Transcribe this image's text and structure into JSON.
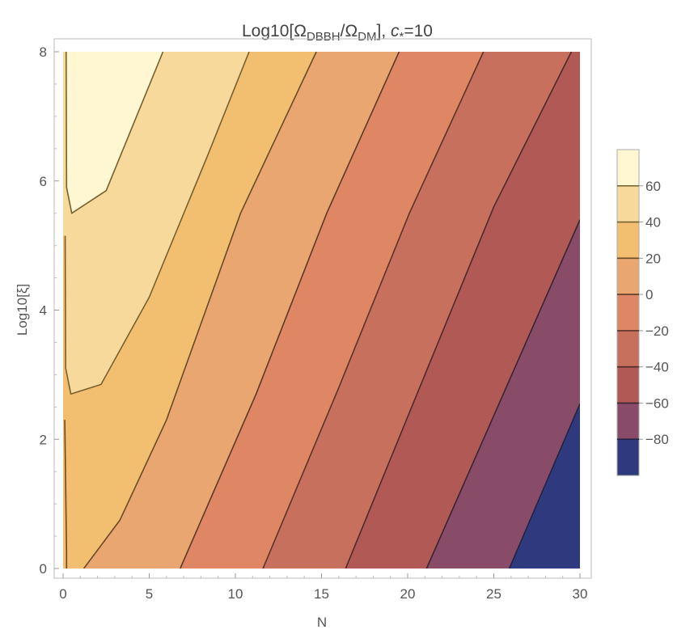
{
  "chart_data": {
    "type": "contour",
    "title": {
      "prefix": "Log10[Ω",
      "sub1": "DBBH",
      "mid": "/Ω",
      "sub2": "DM",
      "suffix_a": "], ",
      "param": "c",
      "param_sub": "*",
      "suffix_b": "=10"
    },
    "xlabel": "N",
    "ylabel": "Log10[ξ]",
    "xlim": [
      0,
      30
    ],
    "ylim": [
      0,
      8
    ],
    "x_ticks": [
      0,
      5,
      10,
      15,
      20,
      25,
      30
    ],
    "y_ticks": [
      0,
      2,
      4,
      6,
      8
    ],
    "grid": false,
    "legend_position": "right",
    "contour_levels": [
      -80,
      -60,
      -40,
      -20,
      0,
      20,
      40,
      60
    ],
    "legend_ticks": [
      60,
      40,
      20,
      0,
      -20,
      -40,
      -60,
      -80
    ],
    "band_colors": [
      "#2f3a7e",
      "#884c68",
      "#b15a55",
      "#c8705e",
      "#df8764",
      "#e9a671",
      "#f2bf71",
      "#f7d99c",
      "#fef7d1"
    ],
    "contour_line_colors": {
      "-80": "#222244",
      "-60": "#3a2333",
      "-40": "#4e2a2a",
      "-20": "#5c3328",
      "0": "#5c3a25",
      "20": "#6a4a28",
      "40": "#776030",
      "60": "#7a6a3a"
    },
    "contour_lines": [
      {
        "level": -80,
        "points": [
          [
            25.9,
            0
          ],
          [
            30,
            2.55
          ]
        ]
      },
      {
        "level": -60,
        "points": [
          [
            21.1,
            0
          ],
          [
            30,
            5.4
          ]
        ]
      },
      {
        "level": -40,
        "points": [
          [
            16.4,
            0
          ],
          [
            21,
            3
          ],
          [
            25,
            5.6
          ],
          [
            29.5,
            8
          ]
        ]
      },
      {
        "level": -20,
        "points": [
          [
            11.6,
            0
          ],
          [
            16,
            2.8
          ],
          [
            20.1,
            5.5
          ],
          [
            24.4,
            8
          ]
        ]
      },
      {
        "level": 0,
        "points": [
          [
            6.8,
            0
          ],
          [
            11.2,
            2.7
          ],
          [
            15.3,
            5.5
          ],
          [
            19.5,
            8
          ]
        ]
      },
      {
        "level": 20,
        "points": [
          [
            1.2,
            0
          ],
          [
            3.3,
            0.75
          ],
          [
            6,
            2.3
          ],
          [
            10.3,
            5.5
          ],
          [
            14.7,
            8
          ]
        ]
      },
      {
        "level": 40,
        "points": [
          [
            0.18,
            8
          ],
          [
            0.2,
            5.9
          ],
          [
            0.5,
            5.5
          ],
          [
            2.5,
            5.85
          ],
          [
            5.8,
            8
          ]
        ]
      },
      {
        "level": 40,
        "points": [
          [
            0.12,
            5.15
          ],
          [
            0.15,
            3.1
          ],
          [
            0.45,
            2.7
          ],
          [
            2.2,
            2.85
          ],
          [
            5,
            4.2
          ],
          [
            8.4,
            6.4
          ],
          [
            10.8,
            8
          ]
        ]
      },
      {
        "level": 20,
        "points": [
          [
            0.1,
            2.3
          ],
          [
            0.2,
            0.25
          ],
          [
            0.2,
            0
          ]
        ]
      }
    ],
    "colorbar": {
      "min": -100,
      "max": 80
    }
  }
}
